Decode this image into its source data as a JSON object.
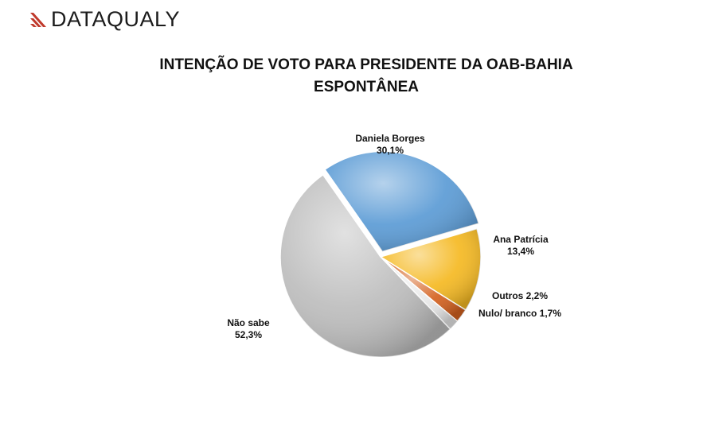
{
  "brand": {
    "name": "DATAQUALY",
    "mark_color": "#c0392b",
    "icon": "diagonal-stripes-logo-icon"
  },
  "chart_data": {
    "type": "pie",
    "title": "INTENÇÃO DE VOTO PARA PRESIDENTE DA OAB-BAHIA",
    "subtitle": "ESPONTÂNEA",
    "unit": "%",
    "slices": [
      {
        "name": "Daniela Borges",
        "value": 30.1,
        "label": "30,1%",
        "color": "#5b9bd5"
      },
      {
        "name": "Ana Patrícia",
        "value": 13.4,
        "label": "13,4%",
        "color": "#f5b922"
      },
      {
        "name": "Outros",
        "value": 2.2,
        "label": "2,2%",
        "color": "#d4611f"
      },
      {
        "name": "Nulo/ branco",
        "value": 1.7,
        "label": "1,7%",
        "color": "#e6e6e6"
      },
      {
        "name": "Não sabe",
        "value": 52.3,
        "label": "52,3%",
        "color": "#bdbdbd"
      }
    ]
  }
}
